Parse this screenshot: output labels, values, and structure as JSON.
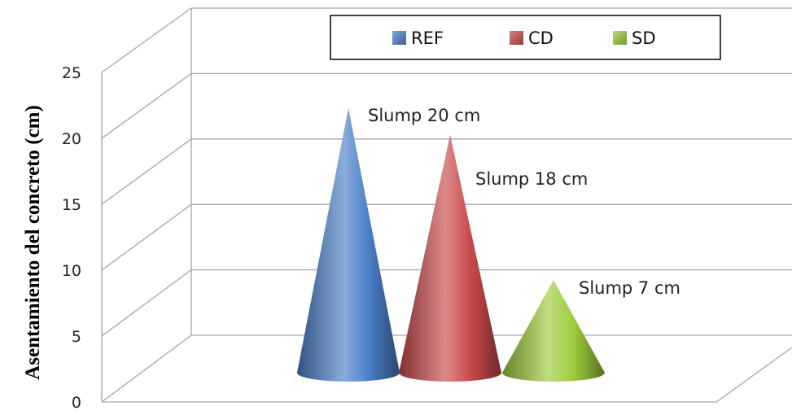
{
  "chart_data": {
    "type": "bar",
    "bar_shape": "cone-3d",
    "ylabel": "Asentamiento del concreto (cm)",
    "ylim": [
      0,
      25
    ],
    "yticks": [
      0,
      5,
      10,
      15,
      20,
      25
    ],
    "grid": true,
    "legend_position": "top",
    "series": [
      {
        "name": "REF",
        "value": 20,
        "label": "Slump 20 cm",
        "color": "#4a7fc8"
      },
      {
        "name": "CD",
        "value": 18,
        "label": "Slump 18 cm",
        "color": "#c94a4a"
      },
      {
        "name": "SD",
        "value": 7,
        "label": "Slump 7 cm",
        "color": "#9ccb3b"
      }
    ]
  }
}
